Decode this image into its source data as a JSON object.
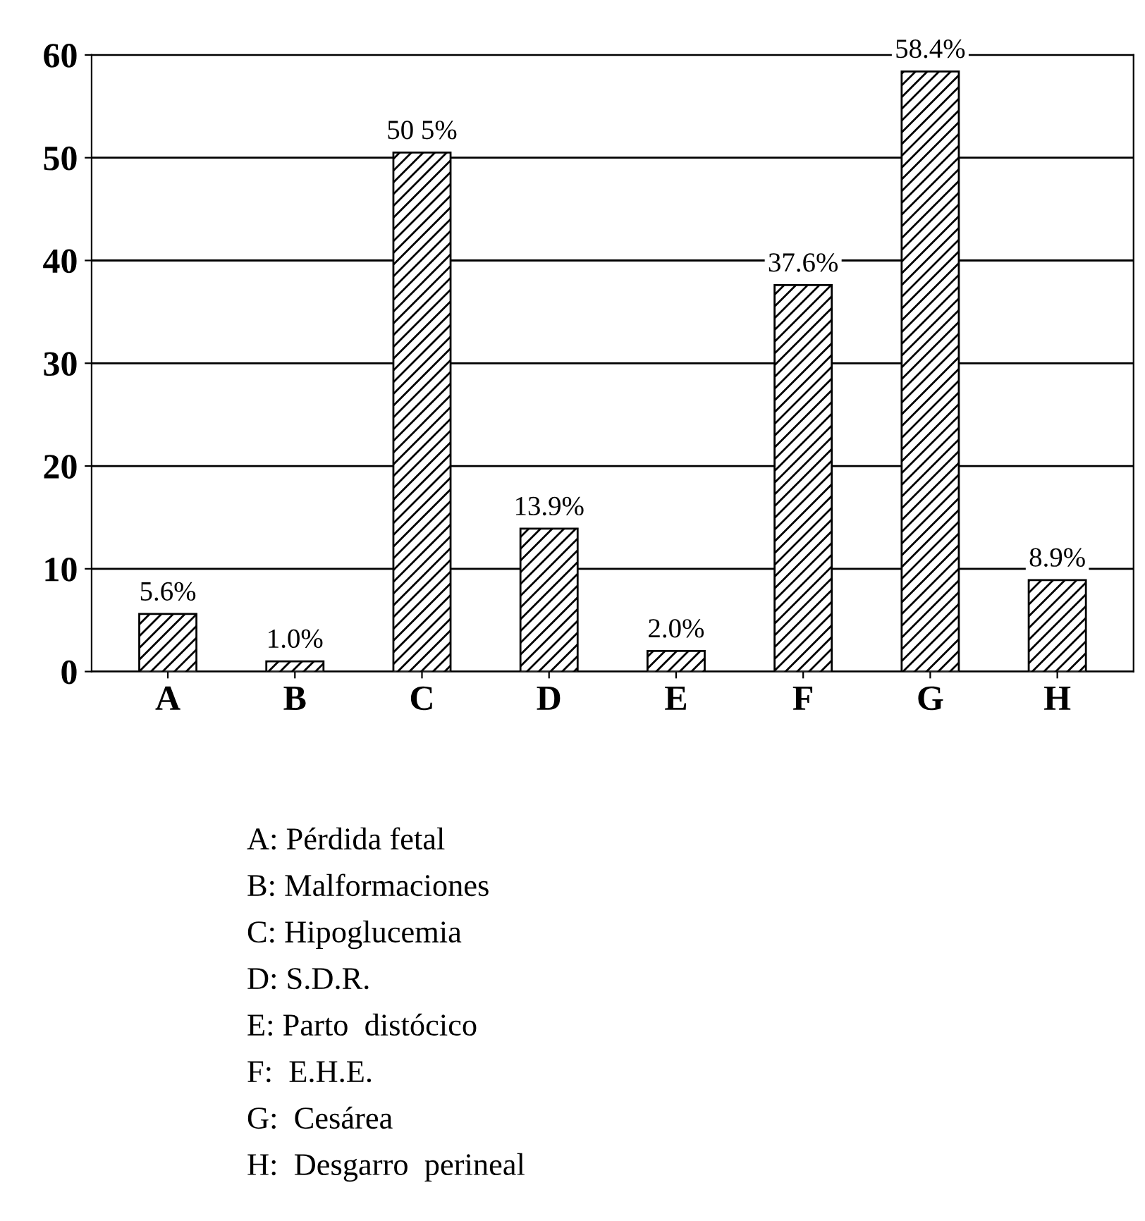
{
  "chart_data": {
    "type": "bar",
    "categories": [
      "A",
      "B",
      "C",
      "D",
      "E",
      "F",
      "G",
      "H"
    ],
    "values": [
      5.6,
      1.0,
      50.5,
      13.9,
      2.0,
      37.6,
      58.4,
      8.9
    ],
    "value_labels": [
      "5.6%",
      "1.0%",
      "50 5%",
      "13.9%",
      "2.0%",
      "37.6%",
      "58.4%",
      "8.9%"
    ],
    "color": "#000000",
    "ylim": [
      0,
      60
    ],
    "yticks": [
      0,
      10,
      20,
      30,
      40,
      50,
      60
    ],
    "grid": "y",
    "annotations": [
      "A: Pérdida fetal",
      "B: Malformaciones",
      "C: Hipoglucemia",
      "D: S.D.R.",
      "E: Parto  distócico",
      "F:  E.H.E.",
      "G:  Cesárea",
      "H:  Desgarro  perineal"
    ]
  }
}
